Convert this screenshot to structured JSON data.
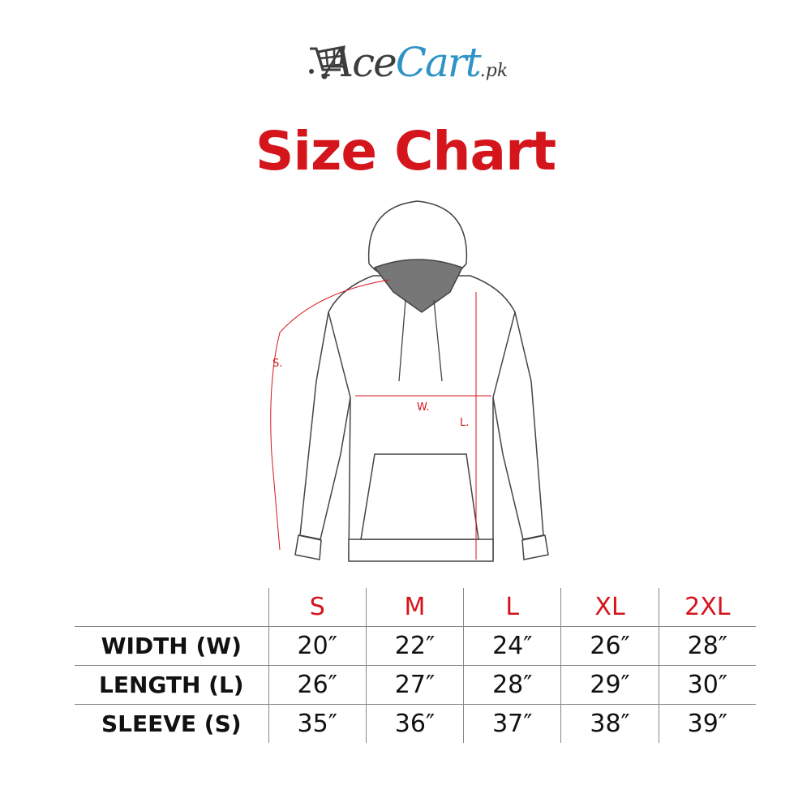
{
  "logo": {
    "text_dark": "Ace",
    "text_blue": "Cart",
    "suffix": ".pk",
    "colors": {
      "dark": "#3d3d3d",
      "blue": "#2f93c6"
    },
    "icon": "shopping-cart-icon"
  },
  "title": "Size Chart",
  "accent_color": "#d4151c",
  "diagram": {
    "labels": {
      "sleeve": "S.",
      "width": "W.",
      "length": "L."
    }
  },
  "table": {
    "sizes": [
      "S",
      "M",
      "L",
      "XL",
      "2XL"
    ],
    "rows": [
      {
        "label": "WIDTH (W)",
        "values": [
          "20″",
          "22″",
          "24″",
          "26″",
          "28″"
        ]
      },
      {
        "label": "LENGTH (L)",
        "values": [
          "26″",
          "27″",
          "28″",
          "29″",
          "30″"
        ]
      },
      {
        "label": "SLEEVE (S)",
        "values": [
          "35″",
          "36″",
          "37″",
          "38″",
          "39″"
        ]
      }
    ]
  }
}
